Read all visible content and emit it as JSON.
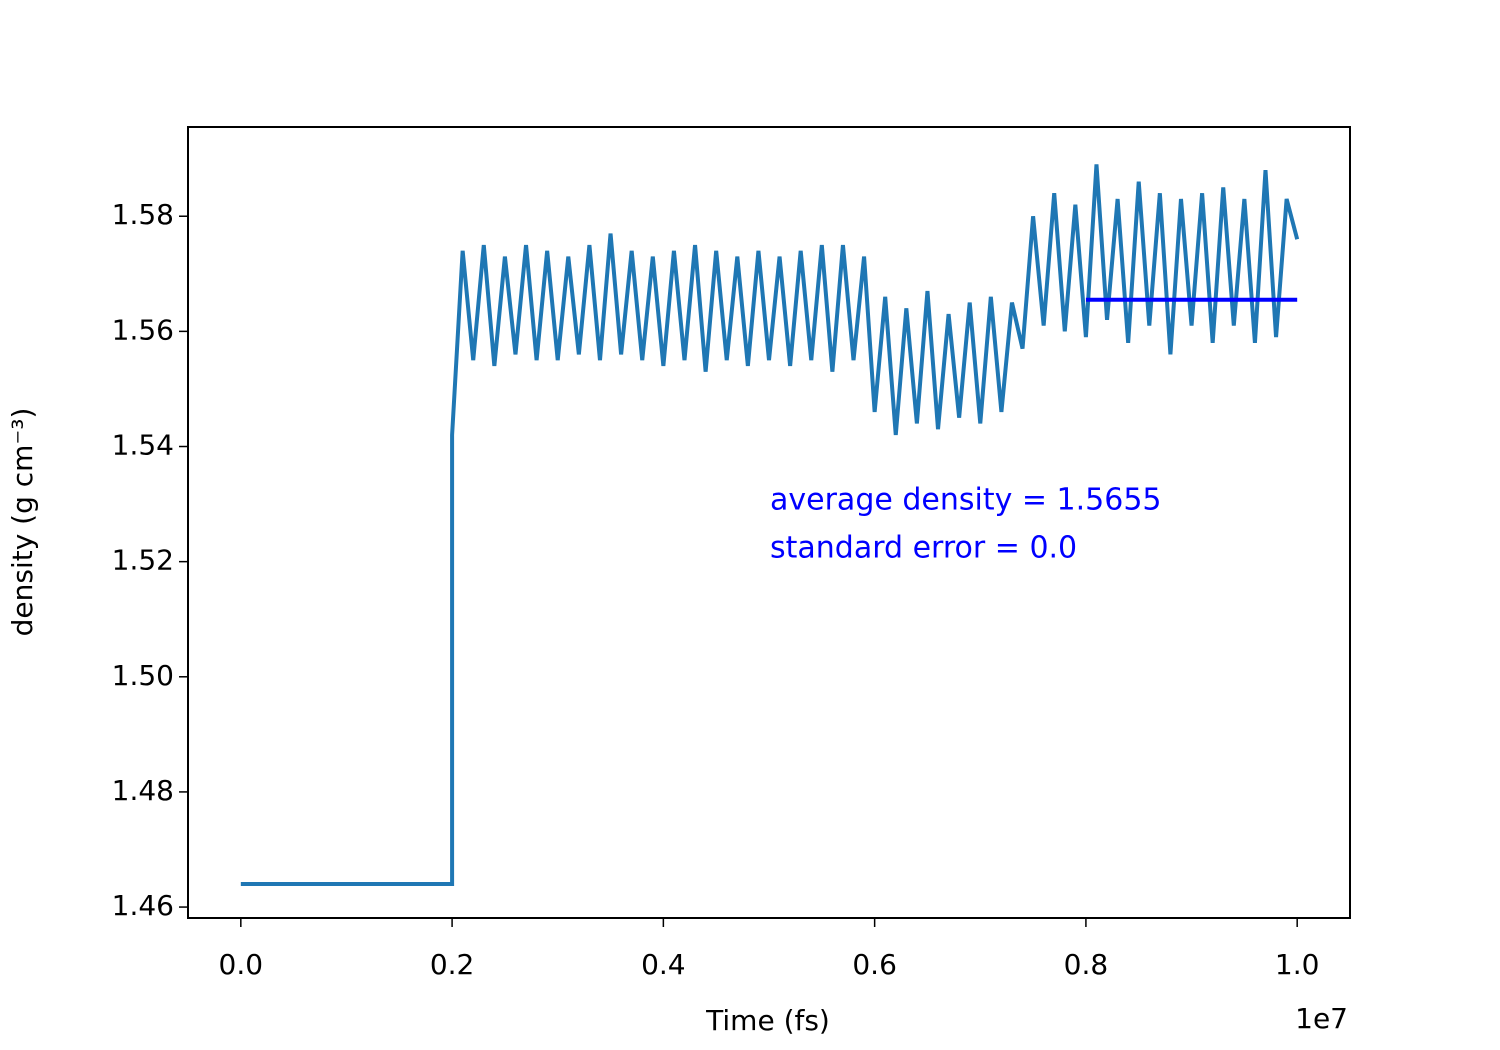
{
  "chart_data": {
    "type": "line",
    "xlabel": "Time (fs)",
    "ylabel": "density (g cm⁻³)",
    "x_offset_label": "1e7",
    "xlim": [
      -0.05,
      1.05
    ],
    "ylim": [
      1.4581,
      1.5955
    ],
    "xticks": [
      {
        "value": 0,
        "label": "0.0"
      },
      0.2,
      0.4,
      0.6,
      0.8,
      {
        "value": 1,
        "label": "1.0"
      }
    ],
    "yticks": [
      1.46,
      1.48,
      {
        "value": 1.5,
        "label": "1.50"
      },
      1.52,
      1.54,
      1.56,
      1.58
    ],
    "x": [
      0,
      0.2,
      0.2,
      0.21,
      0.22,
      0.23,
      0.24,
      0.25,
      0.26,
      0.27,
      0.28,
      0.29,
      0.3,
      0.31,
      0.32,
      0.33,
      0.34,
      0.35,
      0.36,
      0.37,
      0.38,
      0.39,
      0.4,
      0.41,
      0.42,
      0.43,
      0.44,
      0.45,
      0.46,
      0.47,
      0.48,
      0.49,
      0.5,
      0.51,
      0.52,
      0.53,
      0.54,
      0.55,
      0.56,
      0.57,
      0.58,
      0.59,
      0.6,
      0.61,
      0.62,
      0.63,
      0.64,
      0.65,
      0.66,
      0.67,
      0.68,
      0.69,
      0.7,
      0.71,
      0.72,
      0.73,
      0.74,
      0.75,
      0.76,
      0.77,
      0.78,
      0.79,
      0.8,
      0.81,
      0.82,
      0.83,
      0.84,
      0.85,
      0.86,
      0.87,
      0.88,
      0.89,
      0.9,
      0.91,
      0.92,
      0.93,
      0.94,
      0.95,
      0.96,
      0.97,
      0.98,
      0.99,
      1.0
    ],
    "series": [
      {
        "color": "#1f77b4",
        "values": [
          1.464,
          1.464,
          1.542,
          1.574,
          1.555,
          1.575,
          1.554,
          1.573,
          1.556,
          1.575,
          1.555,
          1.574,
          1.555,
          1.573,
          1.556,
          1.575,
          1.555,
          1.577,
          1.556,
          1.574,
          1.555,
          1.573,
          1.554,
          1.574,
          1.555,
          1.575,
          1.553,
          1.574,
          1.555,
          1.573,
          1.554,
          1.574,
          1.555,
          1.573,
          1.554,
          1.574,
          1.555,
          1.575,
          1.553,
          1.575,
          1.555,
          1.573,
          1.546,
          1.566,
          1.542,
          1.564,
          1.544,
          1.567,
          1.543,
          1.563,
          1.545,
          1.565,
          1.544,
          1.566,
          1.546,
          1.565,
          1.557,
          1.58,
          1.561,
          1.584,
          1.56,
          1.582,
          1.559,
          1.589,
          1.562,
          1.583,
          1.558,
          1.586,
          1.561,
          1.584,
          1.556,
          1.583,
          1.561,
          1.584,
          1.558,
          1.585,
          1.561,
          1.583,
          1.558,
          1.588,
          1.559,
          1.583,
          1.576
        ]
      }
    ],
    "average_line": {
      "x": [
        0.8,
        1.0
      ],
      "values": [
        1.5655,
        1.5655
      ],
      "color": "#0000ff"
    },
    "annotations": [
      "average density = 1.5655",
      "standard error = 0.0"
    ],
    "annotation_color": "#0000ff"
  }
}
